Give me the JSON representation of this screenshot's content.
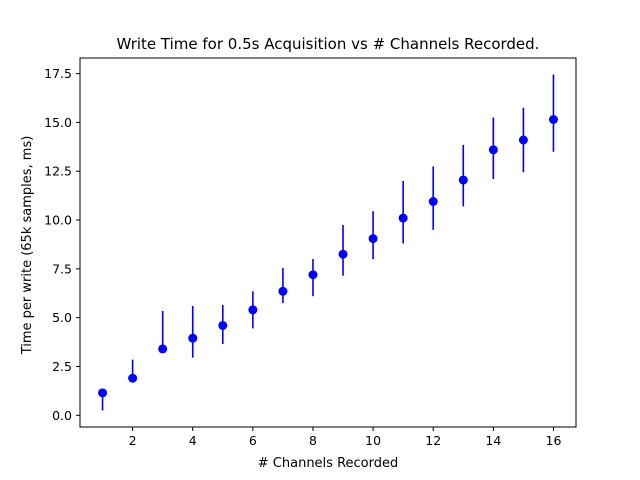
{
  "chart_data": {
    "type": "scatter",
    "title": "Write Time for 0.5s Acquisition vs # Channels Recorded.",
    "xlabel": "# Channels Recorded",
    "ylabel": "Time per write (65k samples, ms)",
    "xlim": [
      0.25,
      16.75
    ],
    "ylim": [
      -0.6,
      18.3
    ],
    "xticks": [
      2,
      4,
      6,
      8,
      10,
      12,
      14,
      16
    ],
    "xtick_labels": [
      "2",
      "4",
      "6",
      "8",
      "10",
      "12",
      "14",
      "16"
    ],
    "yticks": [
      0.0,
      2.5,
      5.0,
      7.5,
      10.0,
      12.5,
      15.0,
      17.5
    ],
    "ytick_labels": [
      "0.0",
      "2.5",
      "5.0",
      "7.5",
      "10.0",
      "12.5",
      "15.0",
      "17.5"
    ],
    "grid": false,
    "legend": null,
    "color": "#0000ff",
    "series": [
      {
        "x": [
          1,
          2,
          3,
          4,
          5,
          6,
          7,
          8,
          9,
          10,
          11,
          12,
          13,
          14,
          15,
          16
        ],
        "y": [
          1.15,
          1.9,
          3.4,
          3.95,
          4.6,
          5.4,
          6.35,
          7.2,
          8.25,
          9.05,
          10.1,
          10.95,
          12.05,
          13.6,
          14.1,
          15.15
        ],
        "yerr_low": [
          0.25,
          1.75,
          3.25,
          2.95,
          3.65,
          4.45,
          5.75,
          6.1,
          7.15,
          8.0,
          8.8,
          9.5,
          10.7,
          12.1,
          12.45,
          13.5
        ],
        "yerr_high": [
          1.15,
          2.85,
          5.35,
          5.6,
          5.65,
          6.35,
          7.55,
          8.0,
          9.75,
          10.45,
          12.0,
          12.75,
          13.85,
          15.25,
          15.75,
          17.45
        ]
      }
    ]
  }
}
